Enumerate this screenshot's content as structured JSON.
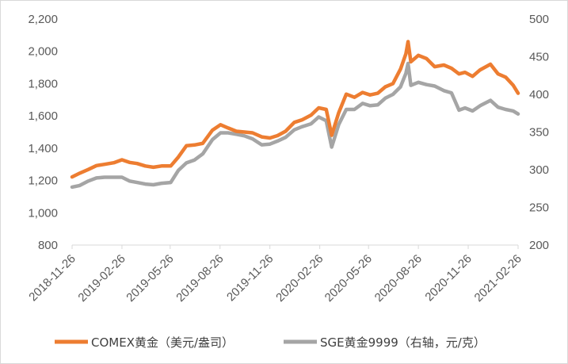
{
  "chart_data": {
    "type": "line",
    "x_dates": [
      "2018-11-26",
      "2018-12-10",
      "2018-12-26",
      "2019-01-10",
      "2019-01-25",
      "2019-02-11",
      "2019-02-26",
      "2019-03-12",
      "2019-03-26",
      "2019-04-10",
      "2019-04-25",
      "2019-05-10",
      "2019-05-27",
      "2019-06-10",
      "2019-06-25",
      "2019-07-10",
      "2019-07-25",
      "2019-08-12",
      "2019-08-27",
      "2019-09-10",
      "2019-09-25",
      "2019-10-10",
      "2019-10-25",
      "2019-11-11",
      "2019-11-26",
      "2019-12-10",
      "2019-12-25",
      "2020-01-10",
      "2020-01-24",
      "2020-02-10",
      "2020-02-24",
      "2020-03-09",
      "2020-03-19",
      "2020-04-01",
      "2020-04-15",
      "2020-04-30",
      "2020-05-15",
      "2020-05-29",
      "2020-06-12",
      "2020-06-26",
      "2020-07-10",
      "2020-07-24",
      "2020-08-03",
      "2020-08-07",
      "2020-08-12",
      "2020-08-26",
      "2020-09-10",
      "2020-09-25",
      "2020-10-12",
      "2020-10-26",
      "2020-11-09",
      "2020-11-20",
      "2020-12-04",
      "2020-12-18",
      "2021-01-06",
      "2021-01-20",
      "2021-02-03",
      "2021-02-17",
      "2021-02-26"
    ],
    "series": [
      {
        "name": "COMEX黄金（美元/盎司）",
        "color": "#ED7D31",
        "axis": "left",
        "values": [
          1222,
          1245,
          1268,
          1292,
          1300,
          1310,
          1328,
          1312,
          1305,
          1290,
          1282,
          1290,
          1290,
          1345,
          1415,
          1420,
          1430,
          1512,
          1545,
          1525,
          1505,
          1500,
          1495,
          1470,
          1463,
          1478,
          1505,
          1560,
          1575,
          1605,
          1650,
          1640,
          1480,
          1620,
          1735,
          1715,
          1745,
          1730,
          1740,
          1780,
          1800,
          1890,
          1985,
          2060,
          1935,
          1975,
          1955,
          1905,
          1915,
          1895,
          1860,
          1870,
          1845,
          1885,
          1920,
          1860,
          1840,
          1790,
          1740
        ]
      },
      {
        "name": "SGE黄金9999（右轴，元/克）",
        "color": "#A5A5A5",
        "axis": "right",
        "values": [
          277,
          279,
          285,
          289,
          290,
          290,
          290,
          285,
          283,
          281,
          280,
          282,
          283,
          299,
          309,
          313,
          321,
          340,
          349,
          349,
          347,
          345,
          341,
          333,
          334,
          338,
          343,
          353,
          357,
          361,
          370,
          365,
          330,
          360,
          380,
          380,
          388,
          385,
          386,
          395,
          400,
          410,
          428,
          441,
          412,
          416,
          413,
          411,
          405,
          402,
          379,
          382,
          378,
          385,
          392,
          383,
          380,
          378,
          374
        ]
      }
    ],
    "x_tick_labels": [
      "2018-11-26",
      "2019-02-26",
      "2019-05-26",
      "2019-08-26",
      "2019-11-26",
      "2020-02-26",
      "2020-05-26",
      "2020-08-26",
      "2020-11-26",
      "2021-02-26"
    ],
    "y_left": {
      "min": 800,
      "max": 2200,
      "step": 200,
      "ticks": [
        "800",
        "1,000",
        "1,200",
        "1,400",
        "1,600",
        "1,800",
        "2,000",
        "2,200"
      ]
    },
    "y_right": {
      "min": 200,
      "max": 500,
      "step": 50,
      "ticks": [
        "200",
        "250",
        "300",
        "350",
        "400",
        "450",
        "500"
      ]
    },
    "grid": false,
    "legend_position": "bottom"
  }
}
